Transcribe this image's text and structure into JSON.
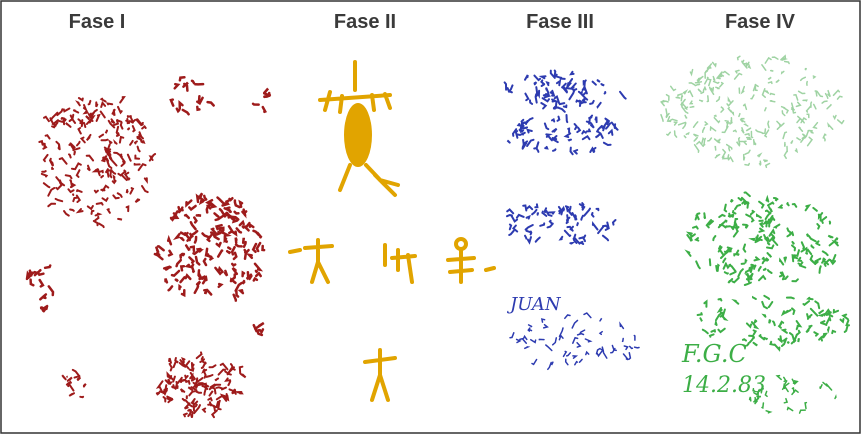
{
  "headers": [
    "Fase I",
    "Fase II",
    "Fase III",
    "Fase IV"
  ],
  "graffiti": {
    "blue": "JUAN",
    "green_1": "F.G.C",
    "green_2": "14.2.83"
  }
}
